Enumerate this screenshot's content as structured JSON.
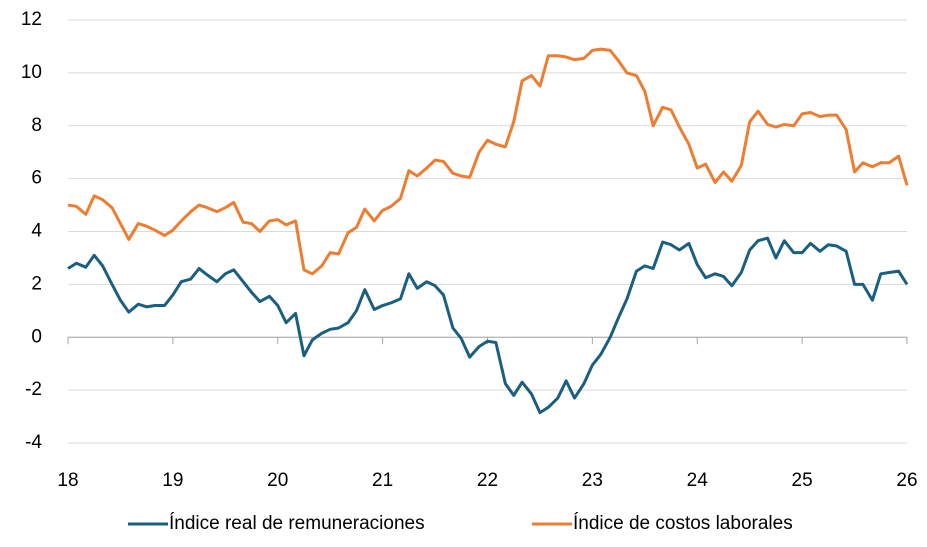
{
  "chart_data": {
    "type": "line",
    "x": [
      18,
      18.08,
      18.17,
      18.25,
      18.33,
      18.42,
      18.5,
      18.58,
      18.67,
      18.75,
      18.83,
      18.92,
      19,
      19.08,
      19.17,
      19.25,
      19.33,
      19.42,
      19.5,
      19.58,
      19.67,
      19.75,
      19.83,
      19.92,
      20,
      20.08,
      20.17,
      20.25,
      20.33,
      20.42,
      20.5,
      20.58,
      20.67,
      20.75,
      20.83,
      20.92,
      21,
      21.08,
      21.17,
      21.25,
      21.33,
      21.42,
      21.5,
      21.58,
      21.67,
      21.75,
      21.83,
      21.92,
      22,
      22.08,
      22.17,
      22.25,
      22.33,
      22.42,
      22.5,
      22.58,
      22.67,
      22.75,
      22.83,
      22.92,
      23,
      23.08,
      23.17,
      23.25,
      23.33,
      23.42,
      23.5,
      23.58,
      23.67,
      23.75,
      23.83,
      23.92,
      24,
      24.08,
      24.17,
      24.25,
      24.33,
      24.42,
      24.5,
      24.58,
      24.67,
      24.75,
      24.83,
      24.92,
      25,
      25.08,
      25.17,
      25.25,
      25.33,
      25.42,
      25.5,
      25.58,
      25.67,
      25.75,
      25.83,
      25.92,
      26
    ],
    "series": [
      {
        "name": "Índice real de remuneraciones",
        "color": "#1b5e80",
        "values": [
          2.6,
          2.8,
          2.65,
          3.1,
          2.7,
          2.0,
          1.4,
          0.95,
          1.25,
          1.15,
          1.2,
          1.2,
          1.6,
          2.1,
          2.2,
          2.6,
          2.35,
          2.1,
          2.4,
          2.55,
          2.1,
          1.7,
          1.35,
          1.55,
          1.2,
          0.55,
          0.9,
          -0.7,
          -0.1,
          0.15,
          0.3,
          0.35,
          0.55,
          1.0,
          1.8,
          1.05,
          1.2,
          1.3,
          1.45,
          2.4,
          1.85,
          2.1,
          1.95,
          1.6,
          0.35,
          -0.05,
          -0.75,
          -0.35,
          -0.15,
          -0.2,
          -1.75,
          -2.2,
          -1.7,
          -2.15,
          -2.85,
          -2.65,
          -2.3,
          -1.65,
          -2.3,
          -1.75,
          -1.05,
          -0.65,
          0.0,
          0.75,
          1.45,
          2.5,
          2.7,
          2.6,
          3.6,
          3.5,
          3.3,
          3.55,
          2.75,
          2.25,
          2.4,
          2.3,
          1.95,
          2.45,
          3.3,
          3.65,
          3.75,
          3.0,
          3.65,
          3.2,
          3.2,
          3.55,
          3.25,
          3.5,
          3.45,
          3.25,
          2.0,
          2.0,
          1.4,
          2.4,
          2.45,
          2.5,
          2.0
        ]
      },
      {
        "name": "Índice de costos laborales",
        "color": "#ed7d31",
        "values": [
          5.0,
          4.95,
          4.65,
          5.35,
          5.2,
          4.9,
          4.3,
          3.7,
          4.3,
          4.2,
          4.05,
          3.85,
          4.05,
          4.4,
          4.75,
          5.0,
          4.9,
          4.75,
          4.9,
          5.1,
          4.35,
          4.3,
          4.0,
          4.4,
          4.45,
          4.25,
          4.4,
          2.55,
          2.4,
          2.7,
          3.2,
          3.15,
          3.95,
          4.15,
          4.85,
          4.4,
          4.8,
          4.95,
          5.25,
          6.3,
          6.1,
          6.4,
          6.7,
          6.65,
          6.2,
          6.1,
          6.05,
          7.0,
          7.45,
          7.3,
          7.2,
          8.15,
          9.7,
          9.9,
          9.5,
          10.65,
          10.65,
          10.6,
          10.5,
          10.55,
          10.85,
          10.9,
          10.85,
          10.45,
          10.0,
          9.9,
          9.3,
          8.0,
          8.7,
          8.6,
          7.95,
          7.3,
          6.4,
          6.55,
          5.85,
          6.25,
          5.9,
          6.5,
          8.15,
          8.55,
          8.05,
          7.95,
          8.05,
          8.0,
          8.45,
          8.5,
          8.35,
          8.4,
          8.4,
          7.85,
          6.25,
          6.6,
          6.45,
          6.6,
          6.6,
          6.85,
          5.75
        ]
      }
    ],
    "xlim": [
      18,
      26
    ],
    "xticks": [
      18,
      19,
      20,
      21,
      22,
      23,
      24,
      25,
      26
    ],
    "ylim": [
      -4,
      12
    ],
    "yticks": [
      -4,
      -2,
      0,
      2,
      4,
      6,
      8,
      10,
      12
    ],
    "grid": true,
    "legend": "bottom"
  }
}
